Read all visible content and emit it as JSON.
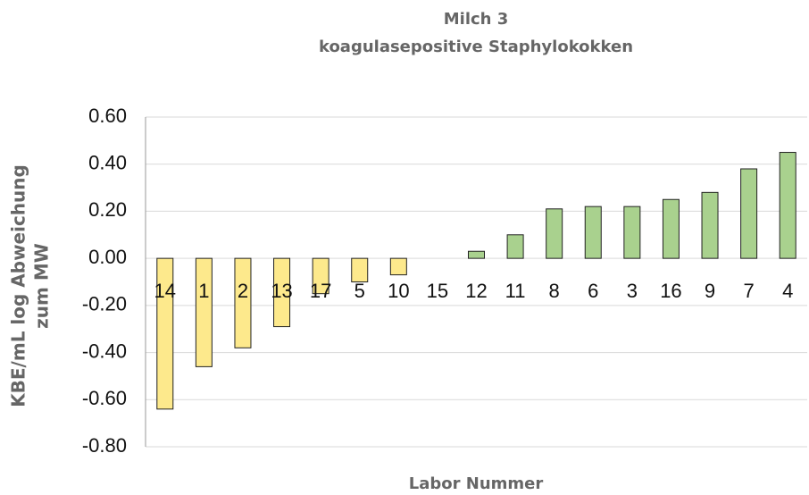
{
  "chart_data": {
    "type": "bar",
    "title": "Milch 3",
    "subtitle": "koagulasepositive Staphylokokken",
    "y_label": [
      "KBE/mL log Abweichung",
      "zum MW"
    ],
    "x_label": "Labor Nummer",
    "categories": [
      "14",
      "1",
      "2",
      "13",
      "17",
      "5",
      "10",
      "15",
      "12",
      "11",
      "8",
      "6",
      "3",
      "16",
      "9",
      "7",
      "4"
    ],
    "values": [
      -0.64,
      -0.46,
      -0.38,
      -0.29,
      -0.15,
      -0.1,
      -0.07,
      0,
      0.03,
      0.1,
      0.21,
      0.22,
      0.22,
      0.25,
      0.28,
      0.38,
      0.45
    ],
    "colors": [
      "#fde98c",
      "#fde98c",
      "#fde98c",
      "#fde98c",
      "#fde98c",
      "#fde98c",
      "#fde98c",
      "#fde98c",
      "#a9d18e",
      "#a9d18e",
      "#a9d18e",
      "#a9d18e",
      "#a9d18e",
      "#a9d18e",
      "#a9d18e",
      "#a9d18e",
      "#a9d18e"
    ],
    "ylim": [
      -0.8,
      0.6
    ],
    "yticks": [
      {
        "value": -0.8,
        "label": "-0.80"
      },
      {
        "value": -0.6,
        "label": "-0.60"
      },
      {
        "value": -0.4,
        "label": "-0.40"
      },
      {
        "value": -0.2,
        "label": "-0.20"
      },
      {
        "value": 0,
        "label": "0.00"
      },
      {
        "value": 0.2,
        "label": "0.20"
      },
      {
        "value": 0.4,
        "label": "0.40"
      },
      {
        "value": 0.6,
        "label": "0.60"
      }
    ],
    "grid": true
  }
}
